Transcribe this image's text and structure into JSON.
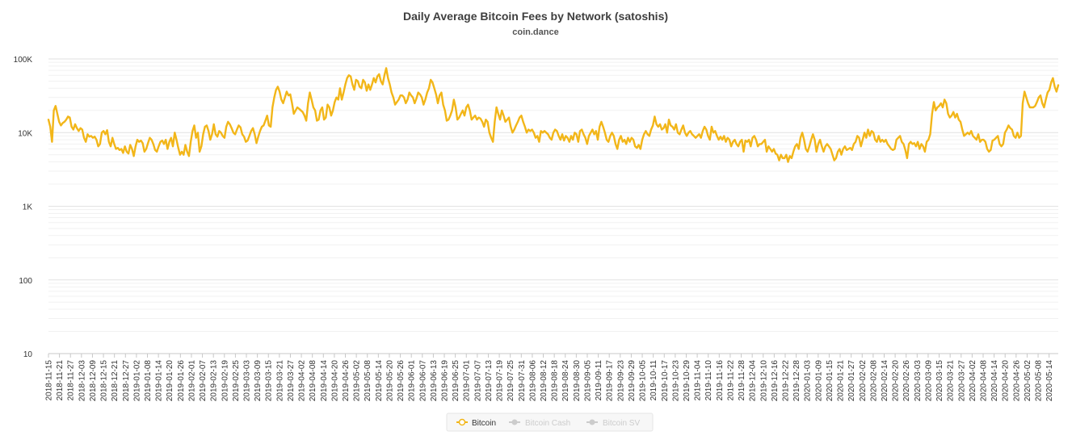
{
  "chart_data": {
    "type": "line",
    "title": "Daily Average Bitcoin Fees by Network (satoshis)",
    "subtitle": "coin.dance",
    "y_scale": "log",
    "ylim": [
      10,
      100000
    ],
    "y_ticks": [
      {
        "value": 100000,
        "label": "100K"
      },
      {
        "value": 10000,
        "label": "10K"
      },
      {
        "value": 1000,
        "label": "1K"
      },
      {
        "value": 100,
        "label": "100"
      },
      {
        "value": 10,
        "label": "10"
      }
    ],
    "x_start": "2018-11-15",
    "x_end": "2020-05-19",
    "x_tick_labels": [
      "2018-11-15",
      "2018-11-21",
      "2018-11-27",
      "2018-12-03",
      "2018-12-09",
      "2018-12-15",
      "2018-12-21",
      "2018-12-27",
      "2019-01-02",
      "2019-01-08",
      "2019-01-14",
      "2019-01-20",
      "2019-01-26",
      "2019-02-01",
      "2019-02-07",
      "2019-02-13",
      "2019-02-19",
      "2019-02-25",
      "2019-03-03",
      "2019-03-09",
      "2019-03-15",
      "2019-03-21",
      "2019-03-27",
      "2019-04-02",
      "2019-04-08",
      "2019-04-14",
      "2019-04-20",
      "2019-04-26",
      "2019-05-02",
      "2019-05-08",
      "2019-05-14",
      "2019-05-20",
      "2019-05-26",
      "2019-06-01",
      "2019-06-07",
      "2019-06-13",
      "2019-06-19",
      "2019-06-25",
      "2019-07-01",
      "2019-07-07",
      "2019-07-13",
      "2019-07-19",
      "2019-07-25",
      "2019-07-31",
      "2019-08-06",
      "2019-08-12",
      "2019-08-18",
      "2019-08-24",
      "2019-08-30",
      "2019-09-05",
      "2019-09-11",
      "2019-09-17",
      "2019-09-23",
      "2019-09-29",
      "2019-10-05",
      "2019-10-11",
      "2019-10-17",
      "2019-10-23",
      "2019-10-29",
      "2019-11-04",
      "2019-11-10",
      "2019-11-16",
      "2019-11-22",
      "2019-11-28",
      "2019-12-04",
      "2019-12-10",
      "2019-12-16",
      "2019-12-22",
      "2019-12-28",
      "2020-01-03",
      "2020-01-09",
      "2020-01-15",
      "2020-01-21",
      "2020-01-27",
      "2020-02-02",
      "2020-02-08",
      "2020-02-14",
      "2020-02-20",
      "2020-02-26",
      "2020-03-03",
      "2020-03-09",
      "2020-03-15",
      "2020-03-21",
      "2020-03-27",
      "2020-04-02",
      "2020-04-08",
      "2020-04-14",
      "2020-04-20",
      "2020-04-26",
      "2020-05-02",
      "2020-05-08",
      "2020-05-14"
    ],
    "series": [
      {
        "name": "Bitcoin",
        "color": "#f2b619",
        "visible": true,
        "values": [
          15000,
          12000,
          7500,
          20000,
          23000,
          18000,
          14000,
          12500,
          13500,
          14000,
          15000,
          16500,
          16000,
          12000,
          11000,
          13000,
          11500,
          10500,
          11500,
          11000,
          8500,
          7500,
          9500,
          8800,
          9000,
          8500,
          8800,
          8000,
          6500,
          7000,
          10000,
          10500,
          9500,
          10800,
          7500,
          6500,
          8500,
          7000,
          6000,
          6200,
          5800,
          6000,
          5300,
          6500,
          5500,
          5200,
          6800,
          6000,
          4800,
          6500,
          8000,
          7500,
          7800,
          7200,
          5500,
          6000,
          7200,
          8500,
          8000,
          7000,
          5800,
          5500,
          6500,
          7500,
          7800,
          7000,
          8000,
          6000,
          7500,
          8500,
          6500,
          10000,
          8000,
          6200,
          5000,
          5500,
          5000,
          6800,
          5500,
          4800,
          7500,
          10500,
          12500,
          8500,
          10000,
          5500,
          6500,
          9500,
          12000,
          12500,
          10500,
          8000,
          9500,
          13000,
          9500,
          8800,
          10500,
          10000,
          9000,
          8500,
          12000,
          14000,
          13000,
          11500,
          10000,
          9500,
          11000,
          12500,
          11800,
          9500,
          8800,
          7500,
          7800,
          9000,
          10500,
          11500,
          9500,
          7200,
          8800,
          10500,
          12000,
          12500,
          14500,
          17000,
          12500,
          12000,
          22000,
          30000,
          38000,
          42000,
          36000,
          28000,
          25000,
          30000,
          36000,
          32000,
          33000,
          25000,
          18000,
          20000,
          22000,
          21000,
          20000,
          19000,
          17000,
          14500,
          25000,
          35000,
          28000,
          22000,
          20000,
          14500,
          15000,
          20000,
          22000,
          15000,
          16000,
          24000,
          22000,
          17000,
          20000,
          26000,
          30000,
          28000,
          40000,
          28000,
          35000,
          45000,
          55000,
          60000,
          58000,
          45000,
          38000,
          52000,
          50000,
          42000,
          40000,
          52000,
          48000,
          37000,
          45000,
          38000,
          45000,
          55000,
          48000,
          58000,
          62000,
          50000,
          45000,
          60000,
          75000,
          55000,
          45000,
          35000,
          30000,
          24000,
          26000,
          28000,
          32000,
          32000,
          30000,
          25000,
          28000,
          35000,
          32000,
          30000,
          25000,
          29000,
          35000,
          33000,
          30000,
          24000,
          28000,
          35000,
          40000,
          52000,
          48000,
          40000,
          33000,
          25000,
          32000,
          35000,
          24000,
          20000,
          14500,
          15000,
          17000,
          20000,
          28000,
          22000,
          15000,
          16000,
          18000,
          20000,
          17000,
          22000,
          24000,
          20000,
          15000,
          16000,
          17000,
          15000,
          16000,
          15500,
          14000,
          12000,
          15000,
          14000,
          10000,
          8500,
          7500,
          14000,
          22000,
          18000,
          15000,
          20000,
          17000,
          14000,
          15000,
          16000,
          12000,
          10000,
          11000,
          12500,
          14000,
          16000,
          17000,
          14000,
          12000,
          10000,
          11000,
          10500,
          11000,
          10000,
          8500,
          9000,
          7500,
          10500,
          10000,
          10500,
          10000,
          9500,
          8500,
          8000,
          10000,
          11000,
          10500,
          9000,
          8000,
          9500,
          7800,
          9000,
          8500,
          7500,
          9000,
          8000,
          10000,
          9500,
          7500,
          10500,
          11000,
          9500,
          8500,
          7000,
          9000,
          10000,
          11000,
          9500,
          10500,
          8000,
          12000,
          14000,
          12000,
          10000,
          8000,
          7500,
          9000,
          10000,
          9000,
          7000,
          6000,
          8000,
          9000,
          7500,
          8000,
          7000,
          8500,
          7500,
          8500,
          8000,
          6500,
          6200,
          6800,
          6000,
          8000,
          9500,
          10500,
          9500,
          9000,
          11000,
          12500,
          16500,
          13000,
          12000,
          13000,
          11000,
          11500,
          13000,
          10000,
          15000,
          12500,
          12000,
          11000,
          13000,
          10000,
          9500,
          11000,
          12500,
          10000,
          9000,
          10000,
          10500,
          9500,
          9000,
          8500,
          9000,
          9500,
          8500,
          10500,
          12000,
          11000,
          9000,
          8000,
          12000,
          10000,
          10500,
          9000,
          8000,
          8800,
          8000,
          9000,
          7500,
          8500,
          8000,
          6500,
          7500,
          8000,
          7000,
          6500,
          7500,
          8000,
          5500,
          7800,
          7500,
          8000,
          6500,
          8500,
          9000,
          8000,
          6500,
          7000,
          7000,
          7500,
          8000,
          5500,
          6500,
          6000,
          5500,
          6000,
          5200,
          5000,
          4200,
          5000,
          4500,
          4500,
          5000,
          4000,
          4800,
          4500,
          5500,
          6500,
          7000,
          6000,
          8500,
          10000,
          8000,
          6000,
          5500,
          6500,
          8000,
          9500,
          8000,
          5500,
          7000,
          8000,
          6500,
          5500,
          6500,
          7000,
          6500,
          6000,
          5000,
          4200,
          4500,
          5500,
          6000,
          5000,
          6000,
          6500,
          5800,
          6000,
          6200,
          5800,
          7000,
          7500,
          9000,
          8500,
          6500,
          8000,
          10000,
          8500,
          11000,
          9000,
          10500,
          10000,
          8000,
          7500,
          9000,
          7500,
          8000,
          7500,
          8000,
          7000,
          6500,
          6000,
          5800,
          6000,
          8000,
          8500,
          9000,
          7500,
          7000,
          5800,
          4500,
          7000,
          7500,
          7000,
          7200,
          6500,
          7500,
          6000,
          7000,
          6500,
          5500,
          7500,
          8000,
          9500,
          18000,
          26000,
          20000,
          22000,
          23000,
          25000,
          22000,
          28000,
          25000,
          18000,
          16000,
          17000,
          19000,
          16000,
          18000,
          15000,
          14000,
          11000,
          9000,
          9500,
          10000,
          9500,
          10500,
          9000,
          8500,
          8000,
          9500,
          7500,
          8000,
          8000,
          7500,
          6000,
          5500,
          5800,
          7800,
          8000,
          8500,
          9000,
          7000,
          6500,
          7000,
          10000,
          11000,
          12500,
          11500,
          11000,
          9000,
          8500,
          10000,
          8500,
          9000,
          25000,
          36000,
          30000,
          25000,
          22000,
          22000,
          22000,
          23000,
          26000,
          30000,
          32000,
          25000,
          22000,
          28000,
          35000,
          38000,
          48000,
          55000,
          42000,
          36000,
          44000
        ]
      },
      {
        "name": "Bitcoin Cash",
        "color": "#cccccc",
        "visible": false,
        "values": []
      },
      {
        "name": "Bitcoin SV",
        "color": "#cccccc",
        "visible": false,
        "values": []
      }
    ],
    "legend_position": "bottom-center",
    "grid": true
  }
}
